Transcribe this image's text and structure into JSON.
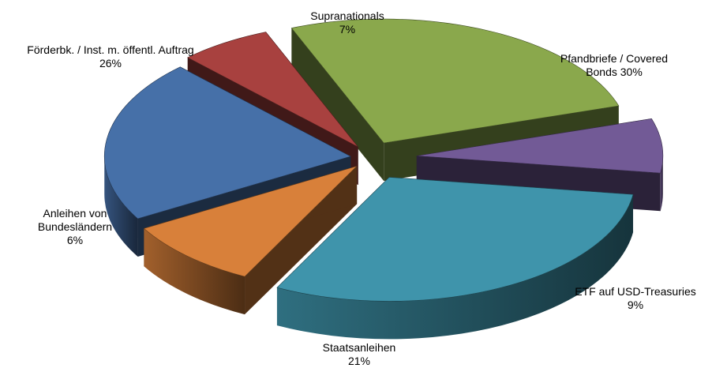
{
  "chart_data": {
    "type": "pie",
    "title": "",
    "slices": [
      {
        "label": "Pfandbriefe / Covered Bonds",
        "label_lines": [
          "Pfandbriefe / Covered",
          "Bonds 30%"
        ],
        "value": 30,
        "color": "#3f94ab"
      },
      {
        "label": "ETF auf USD-Treasuries",
        "label_lines": [
          "ETF auf USD-Treasuries",
          "9%"
        ],
        "value": 9,
        "color": "#d8803a"
      },
      {
        "label": "Staatsanleihen",
        "label_lines": [
          "Staatsanleihen",
          "21%"
        ],
        "value": 21,
        "color": "#4670a8"
      },
      {
        "label": "Anleihen von Bundesländern",
        "label_lines": [
          "Anleihen von",
          "Bundesländern",
          "6%"
        ],
        "value": 6,
        "color": "#a8413f"
      },
      {
        "label": "Förderbk. / Inst. m. öffentl. Auftrag",
        "label_lines": [
          "Förderbk. / Inst. m. öffentl. Auftrag",
          "26%"
        ],
        "value": 26,
        "color": "#8aa84c"
      },
      {
        "label": "Supranationals",
        "label_lines": [
          "Supranationals",
          "7%"
        ],
        "value": 7,
        "color": "#725a96"
      }
    ],
    "style": "3d-exploded"
  }
}
